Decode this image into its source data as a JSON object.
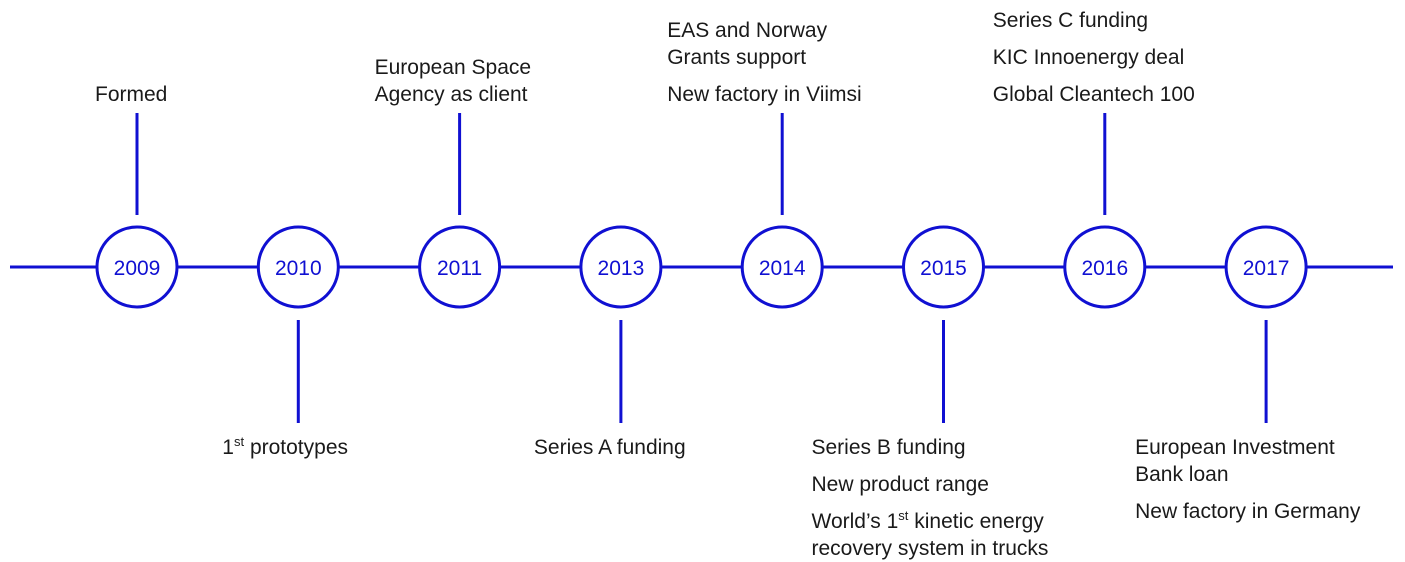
{
  "nodes": [
    {
      "year": "2009",
      "position": "above",
      "events": [
        [
          "Formed"
        ]
      ]
    },
    {
      "year": "2010",
      "position": "below",
      "events": [
        [
          {
            "pre": "1",
            "sup": "st",
            "post": " prototypes"
          }
        ]
      ]
    },
    {
      "year": "2011",
      "position": "above",
      "events": [
        [
          "European Space",
          "Agency as client"
        ]
      ]
    },
    {
      "year": "2013",
      "position": "below",
      "events": [
        [
          "Series A funding"
        ]
      ]
    },
    {
      "year": "2014",
      "position": "above",
      "events": [
        [
          "EAS and Norway",
          "Grants support"
        ],
        [
          "New factory in Viimsi"
        ]
      ]
    },
    {
      "year": "2015",
      "position": "below",
      "events": [
        [
          "Series B funding"
        ],
        [
          "New product range"
        ],
        [
          {
            "pre": "World’s 1",
            "sup": "st",
            "post": " kinetic energy"
          },
          "recovery system in trucks"
        ]
      ]
    },
    {
      "year": "2016",
      "position": "above",
      "events": [
        [
          "Series C funding"
        ],
        [
          "KIC Innoenergy deal"
        ],
        [
          "Global Cleantech 100"
        ]
      ]
    },
    {
      "year": "2017",
      "position": "below",
      "events": [
        [
          "European Investment",
          "Bank loan"
        ],
        [
          "New factory in Germany"
        ]
      ]
    }
  ]
}
